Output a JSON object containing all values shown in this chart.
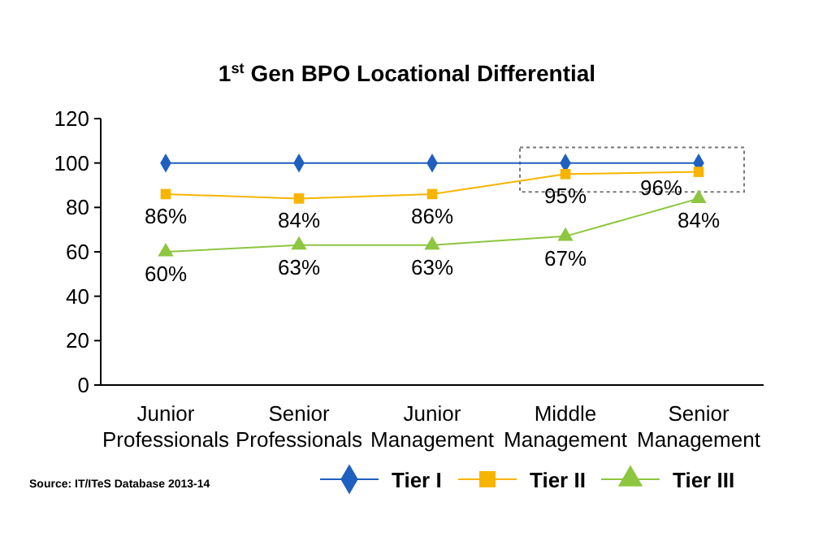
{
  "chart_data": {
    "type": "line",
    "title": "1$^{st}$ Gen BPO Locational Differential",
    "categories": [
      "Junior Professionals",
      "Senior Professionals",
      "Junior Management",
      "Middle Management",
      "Senior Management"
    ],
    "ylim": [
      0,
      120
    ],
    "yticks": [
      0,
      20,
      40,
      60,
      80,
      100,
      120
    ],
    "grid": false,
    "legend": "bottom right",
    "series": [
      {
        "name": "Tier I",
        "color": "#1f5fbf",
        "marker": "diamond",
        "values": [
          100,
          100,
          100,
          100,
          100
        ]
      },
      {
        "name": "Tier II",
        "color": "#f7b500",
        "marker": "square",
        "values": [
          86,
          84,
          86,
          95,
          96
        ],
        "value_labels": [
          "86%",
          "84%",
          "86%",
          "95%",
          "96%"
        ]
      },
      {
        "name": "Tier III",
        "color": "#8dc63f",
        "marker": "triangle",
        "values": [
          60,
          63,
          63,
          67,
          84
        ],
        "value_labels": [
          "60%",
          "63%",
          "63%",
          "67%",
          "84%"
        ]
      }
    ],
    "annotations": [
      "Source: IT/ITeS Database 2013-14"
    ]
  }
}
